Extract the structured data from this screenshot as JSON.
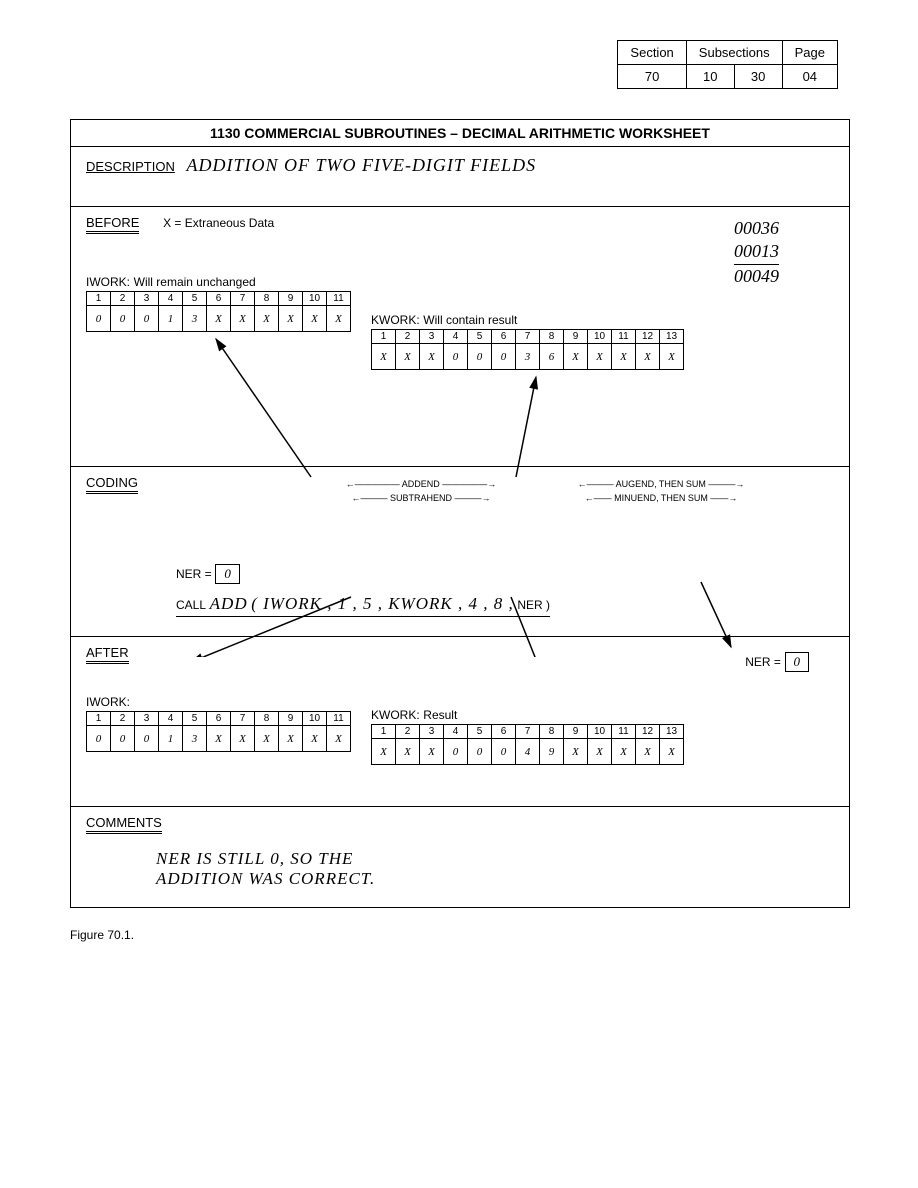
{
  "header": {
    "section_label": "Section",
    "subsections_label": "Subsections",
    "page_label": "Page",
    "section": "70",
    "sub1": "10",
    "sub2": "30",
    "page": "04"
  },
  "worksheet": {
    "title": "1130 COMMERCIAL SUBROUTINES – DECIMAL ARITHMETIC WORKSHEET",
    "description_label": "DESCRIPTION",
    "description_value": "ADDITION OF TWO FIVE-DIGIT FIELDS",
    "before_label": "BEFORE",
    "extraneous_note": "X = Extraneous Data",
    "arithmetic": {
      "a": "00036",
      "b": "00013",
      "sum": "00049"
    },
    "iwork_before": {
      "title": "IWORK:",
      "note": "Will remain unchanged",
      "headers": [
        "1",
        "2",
        "3",
        "4",
        "5",
        "6",
        "7",
        "8",
        "9",
        "10",
        "11"
      ],
      "cells": [
        "0",
        "0",
        "0",
        "1",
        "3",
        "X",
        "X",
        "X",
        "X",
        "X",
        "X"
      ]
    },
    "kwork_before": {
      "title": "KWORK:",
      "note": "Will contain result",
      "headers": [
        "1",
        "2",
        "3",
        "4",
        "5",
        "6",
        "7",
        "8",
        "9",
        "10",
        "11",
        "12",
        "13"
      ],
      "cells": [
        "X",
        "X",
        "X",
        "0",
        "0",
        "0",
        "3",
        "6",
        "X",
        "X",
        "X",
        "X",
        "X"
      ]
    },
    "coding_label": "CODING",
    "coding": {
      "addend": "ADDEND",
      "augend": "AUGEND, THEN SUM",
      "subtrahend": "SUBTRAHEND",
      "minuend": "MINUEND, THEN SUM",
      "ner_label": "NER =",
      "ner_value": "0",
      "call_label": "CALL",
      "call_func": "ADD",
      "call_args": "( IWORK , 1 , 5 , KWORK , 4 , 8 ,",
      "call_ner": "NER )"
    },
    "after_label": "AFTER",
    "ner_after_label": "NER =",
    "ner_after_value": "0",
    "iwork_after": {
      "title": "IWORK:",
      "headers": [
        "1",
        "2",
        "3",
        "4",
        "5",
        "6",
        "7",
        "8",
        "9",
        "10",
        "11"
      ],
      "cells": [
        "0",
        "0",
        "0",
        "1",
        "3",
        "X",
        "X",
        "X",
        "X",
        "X",
        "X"
      ]
    },
    "kwork_after": {
      "title": "KWORK:",
      "note": "Result",
      "headers": [
        "1",
        "2",
        "3",
        "4",
        "5",
        "6",
        "7",
        "8",
        "9",
        "10",
        "11",
        "12",
        "13"
      ],
      "cells": [
        "X",
        "X",
        "X",
        "0",
        "0",
        "0",
        "4",
        "9",
        "X",
        "X",
        "X",
        "X",
        "X"
      ]
    },
    "comments_label": "COMMENTS",
    "comments_text": "NER IS STILL 0, SO THE\nADDITION WAS CORRECT."
  },
  "figure_caption": "Figure 70.1."
}
